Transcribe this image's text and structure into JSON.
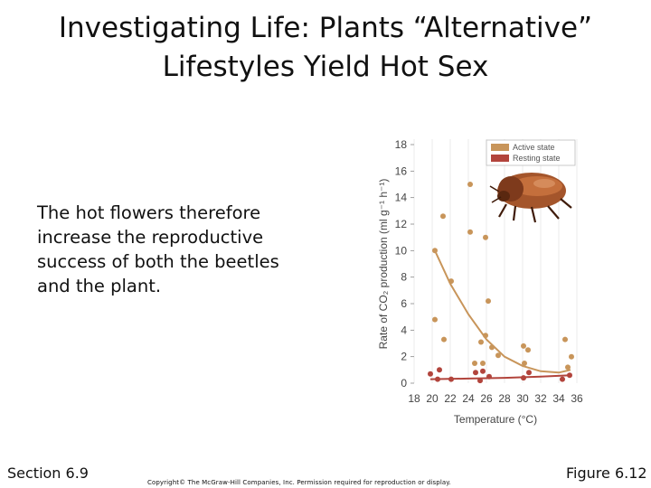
{
  "slide": {
    "title_line1": "Investigating Life: Plants “Alternative”",
    "title_line2": "Lifestyles Yield Hot Sex",
    "body": "The hot flowers therefore increase the reproductive success of both the beetles and the plant.",
    "section": "Section 6.9",
    "figure": "Figure 6.12",
    "copyright": "Copyright© The McGraw-Hill Companies, Inc. Permission required for reproduction or display.",
    "image_icon": "beetle-icon"
  },
  "chart_data": {
    "type": "scatter",
    "title": "",
    "xlabel": "Temperature (°C)",
    "ylabel": "Rate of CO₂ production (ml g⁻¹ h⁻¹)",
    "xlim": [
      18,
      36
    ],
    "ylim": [
      0,
      18
    ],
    "xticks": [
      18,
      20,
      22,
      24,
      26,
      28,
      30,
      32,
      34,
      36
    ],
    "yticks": [
      0,
      2,
      4,
      6,
      8,
      10,
      12,
      14,
      16,
      18
    ],
    "grid": true,
    "legend": "top-right",
    "series": [
      {
        "name": "Active state",
        "color": "#c8955a",
        "points": [
          [
            20.3,
            10.0
          ],
          [
            20.3,
            4.8
          ],
          [
            21.2,
            12.6
          ],
          [
            21.3,
            3.3
          ],
          [
            22.1,
            7.7
          ],
          [
            24.2,
            15.0
          ],
          [
            24.2,
            11.4
          ],
          [
            24.7,
            1.5
          ],
          [
            25.4,
            3.1
          ],
          [
            25.6,
            1.5
          ],
          [
            25.9,
            3.6
          ],
          [
            25.9,
            11.0
          ],
          [
            26.2,
            6.2
          ],
          [
            26.6,
            2.7
          ],
          [
            27.3,
            2.1
          ],
          [
            30.1,
            2.8
          ],
          [
            30.2,
            1.5
          ],
          [
            30.6,
            2.5
          ],
          [
            34.7,
            3.3
          ],
          [
            35.0,
            1.2
          ],
          [
            35.4,
            2.0
          ]
        ],
        "trend": [
          [
            20.3,
            10.0
          ],
          [
            22,
            7.5
          ],
          [
            24,
            5.2
          ],
          [
            26,
            3.3
          ],
          [
            28,
            2.0
          ],
          [
            30,
            1.3
          ],
          [
            32,
            0.9
          ],
          [
            34,
            0.8
          ],
          [
            35.3,
            1.0
          ]
        ]
      },
      {
        "name": "Resting state",
        "color": "#b2443c",
        "points": [
          [
            19.8,
            0.7
          ],
          [
            20.6,
            0.3
          ],
          [
            20.8,
            1.0
          ],
          [
            22.1,
            0.3
          ],
          [
            24.8,
            0.8
          ],
          [
            25.3,
            0.2
          ],
          [
            25.6,
            0.9
          ],
          [
            26.3,
            0.5
          ],
          [
            30.1,
            0.4
          ],
          [
            30.7,
            0.8
          ],
          [
            34.4,
            0.3
          ],
          [
            35.2,
            0.6
          ]
        ],
        "trend": [
          [
            19.8,
            0.3
          ],
          [
            24,
            0.35
          ],
          [
            28,
            0.4
          ],
          [
            32,
            0.5
          ],
          [
            35.3,
            0.6
          ]
        ]
      }
    ]
  }
}
